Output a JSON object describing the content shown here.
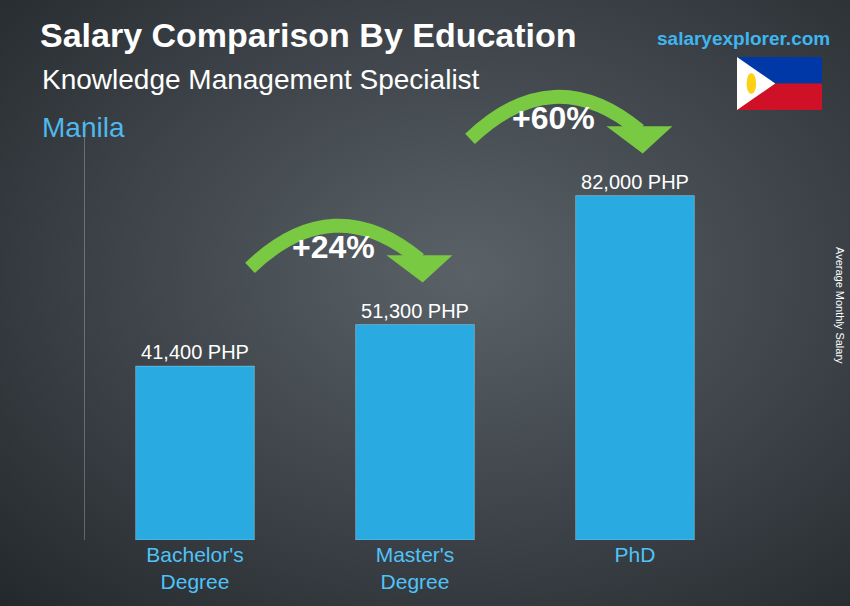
{
  "chart_data": {
    "type": "bar",
    "title": "Salary Comparison By Education",
    "subtitle": "Knowledge Management Specialist",
    "location": "Manila",
    "source": "salaryexplorer.com",
    "ylabel": "Average Monthly Salary",
    "categories": [
      "Bachelor's Degree",
      "Master's Degree",
      "PhD"
    ],
    "values": [
      41400,
      51300,
      82000
    ],
    "value_labels": [
      "41,400 PHP",
      "51,300 PHP",
      "82,000 PHP"
    ],
    "data_labels": true,
    "color": "#29abe2",
    "ylim": [
      0,
      100000
    ],
    "yticks": [],
    "grid": false,
    "tick_labels": "x",
    "annotations": [
      "+24%",
      "+60%"
    ]
  }
}
